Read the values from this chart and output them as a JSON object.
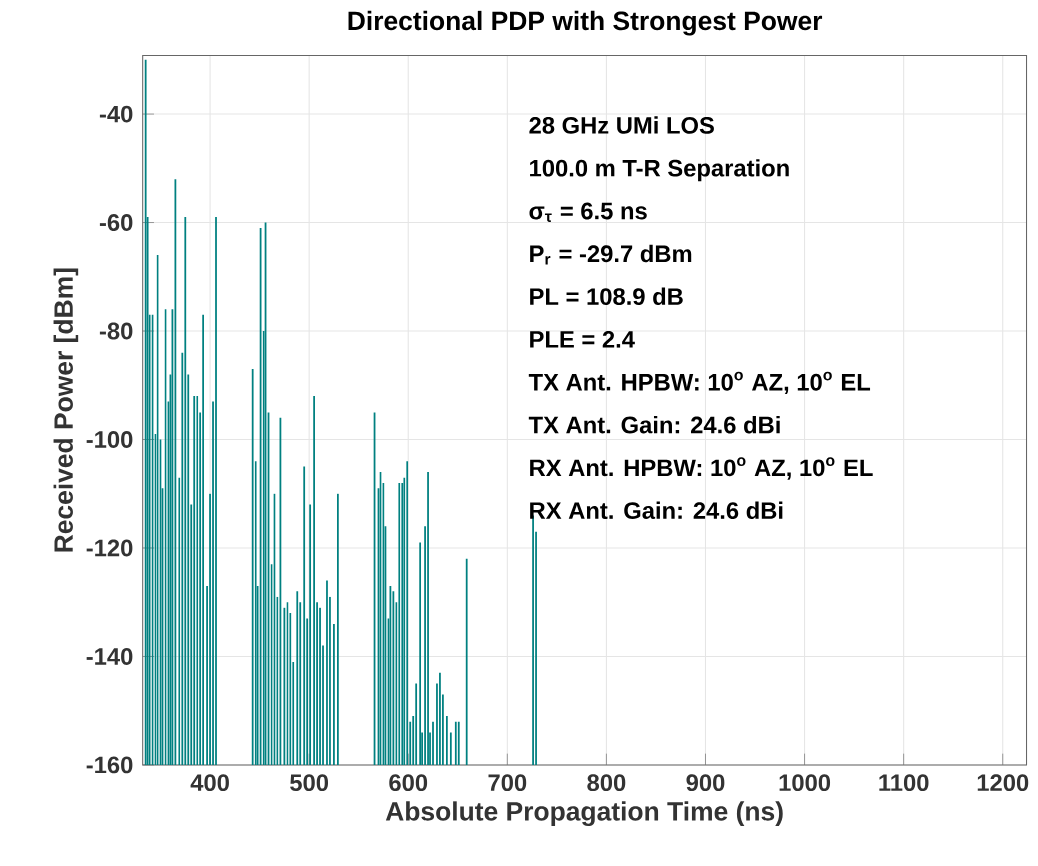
{
  "chart_data": {
    "type": "bar",
    "title": "Directional PDP with Strongest Power",
    "xlabel": "Absolute Propagation Time (ns)",
    "ylabel": "Received Power [dBm]",
    "x": [
      335,
      337,
      339,
      342,
      345,
      347,
      350,
      352,
      355,
      358,
      360,
      362,
      365,
      369,
      372,
      375,
      378,
      381,
      384,
      387,
      390,
      393,
      397,
      400,
      403,
      406,
      443,
      446,
      448,
      451,
      454,
      456,
      459,
      462,
      465,
      468,
      471,
      475,
      478,
      481,
      484,
      488,
      491,
      495,
      498,
      501,
      505,
      508,
      511,
      514,
      518,
      521,
      525,
      529,
      566,
      570,
      572,
      575,
      577,
      580,
      582,
      585,
      588,
      591,
      594,
      596,
      599,
      602,
      605,
      608,
      612,
      614,
      617,
      620,
      622,
      625,
      629,
      632,
      635,
      639,
      643,
      648,
      651,
      659,
      726,
      729
    ],
    "values": [
      130,
      101,
      83,
      83,
      61,
      94,
      60,
      51,
      84,
      67,
      72,
      84,
      108,
      53,
      76,
      101,
      72,
      48,
      68,
      68,
      65,
      83,
      33,
      50,
      67,
      101,
      73,
      56,
      33,
      99,
      80,
      100,
      65,
      37,
      50,
      31,
      64,
      29,
      30,
      28,
      19,
      32,
      30,
      55,
      27,
      48,
      68,
      30,
      29,
      22,
      34,
      31,
      26,
      50,
      65,
      51,
      54,
      52,
      44,
      27,
      33,
      32,
      30,
      52,
      52,
      53,
      56,
      8,
      9,
      15,
      41,
      6,
      44,
      54,
      6,
      8,
      15,
      17,
      13,
      9,
      6,
      8,
      8,
      38,
      46,
      43
    ],
    "base": [
      -160,
      -160,
      -160,
      -160,
      -160,
      -160,
      -160,
      -160,
      -160,
      -160,
      -160,
      -160,
      -160,
      -160,
      -160,
      -160,
      -160,
      -160,
      -160,
      -160,
      -160,
      -160,
      -160,
      -160,
      -160,
      -160,
      -160,
      -160,
      -160,
      -160,
      -160,
      -160,
      -160,
      -160,
      -160,
      -160,
      -160,
      -160,
      -160,
      -160,
      -160,
      -160,
      -160,
      -160,
      -160,
      -160,
      -160,
      -160,
      -160,
      -160,
      -160,
      -160,
      -160,
      -160,
      -160,
      -160,
      -160,
      -160,
      -160,
      -160,
      -160,
      -160,
      -160,
      -160,
      -160,
      -160,
      -160,
      -160,
      -160,
      -160,
      -160,
      -160,
      -160,
      -160,
      -160,
      -160,
      -160,
      -160,
      -160,
      -160,
      -160,
      -160,
      -160,
      -160,
      -160,
      -160
    ],
    "color": "#008080",
    "xlim": [
      332,
      1224
    ],
    "ylim": [
      -160,
      -29.2
    ],
    "xticks": [
      400,
      500,
      600,
      700,
      800,
      900,
      1000,
      1100,
      1200
    ],
    "yticks": [
      -160,
      -140,
      -120,
      -100,
      -80,
      -60,
      -40
    ],
    "grid": true,
    "annotations": [
      "28 GHz UMi LOS",
      "100.0 m T-R Separation",
      "σ$_{τ}$ = 6.5 ns",
      "P$_{r}$ = -29.7 dBm",
      "PL = 108.9 dB",
      "PLE = 2.4",
      "TX Ant. HPBW: 10$^{o}$ AZ, 10$^{o}$ EL",
      "TX Ant. Gain: 24.6 dBi",
      "RX Ant. HPBW: 10$^{o}$ AZ, 10$^{o}$ EL",
      "RX Ant. Gain: 24.6 dBi"
    ]
  }
}
